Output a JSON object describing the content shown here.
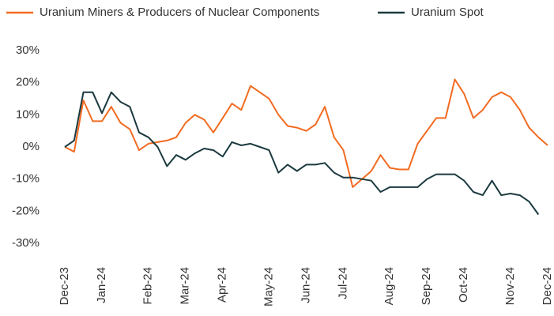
{
  "chart_data": {
    "type": "line",
    "categories": [
      "Dec-23",
      null,
      null,
      null,
      "Jan-24",
      null,
      null,
      null,
      null,
      "Feb-24",
      null,
      null,
      null,
      "Mar-24",
      null,
      null,
      null,
      "Apr-24",
      null,
      null,
      null,
      null,
      "May-24",
      null,
      null,
      null,
      "Jun-24",
      null,
      null,
      null,
      "Jul-24",
      null,
      null,
      null,
      null,
      "Aug-24",
      null,
      null,
      null,
      "Sep-24",
      null,
      null,
      null,
      "Oct-24",
      null,
      null,
      null,
      null,
      "Nov-24",
      null,
      null,
      null,
      "Dec-24"
    ],
    "series": [
      {
        "name": "Uranium Miners & Producers of Nuclear Components",
        "color": "#f26b21",
        "values": [
          0,
          -1.5,
          14.5,
          8,
          8,
          12.5,
          7.5,
          5.5,
          -1,
          1,
          1.5,
          2,
          3,
          7.5,
          10,
          8.5,
          4.5,
          9,
          13.5,
          11.5,
          19,
          17,
          15,
          10,
          6.5,
          6,
          5,
          7,
          12.5,
          3,
          -1,
          -12.5,
          -10,
          -7.5,
          -2.5,
          -6.5,
          -7,
          -7,
          1,
          5,
          9,
          9,
          21,
          16.5,
          9,
          11.5,
          15.5,
          17,
          15.5,
          11.5,
          6,
          3,
          0.5
        ]
      },
      {
        "name": "Uranium Spot",
        "color": "#1b3a3f",
        "values": [
          0,
          2,
          17,
          17,
          10.5,
          17,
          14,
          12.5,
          4.5,
          3,
          0,
          -6,
          -2.5,
          -4,
          -2,
          -0.5,
          -1,
          -3,
          1.5,
          0.5,
          1,
          0,
          -1,
          -8,
          -5.5,
          -7.5,
          -5.5,
          -5.5,
          -5,
          -8,
          -9.5,
          -9.5,
          -10,
          -10.5,
          -14,
          -12.5,
          -12.5,
          -12.5,
          -12.5,
          -10,
          -8.5,
          -8.5,
          -8.5,
          -10.5,
          -14,
          -15,
          -10.5,
          -15,
          -14.5,
          -15,
          -17,
          -21,
          null
        ]
      }
    ],
    "ylim": [
      -36,
      30
    ],
    "yticks": [
      {
        "value": 30,
        "label": "30%"
      },
      {
        "value": 20,
        "label": "20%"
      },
      {
        "value": 10,
        "label": "10%"
      },
      {
        "value": 0,
        "label": "0%"
      },
      {
        "value": -10,
        "label": "-10%"
      },
      {
        "value": -20,
        "label": "-20%"
      },
      {
        "value": -30,
        "label": "-30%"
      }
    ],
    "grid": false,
    "legend": "top"
  }
}
